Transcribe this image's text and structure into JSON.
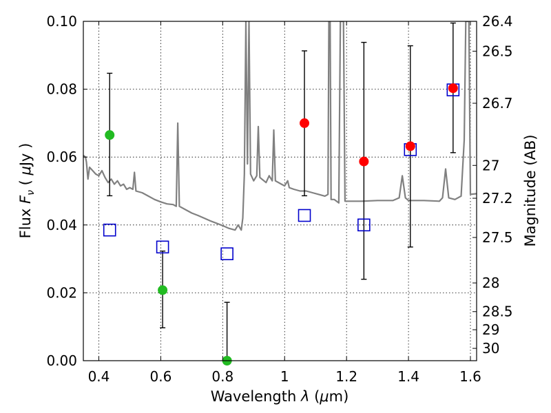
{
  "chart_data": {
    "type": "scatter",
    "xlabel": "Wavelength  λ (μm)",
    "ylabel": "Flux  F_ν  ( μJy )",
    "ylabel_parts": {
      "pre": "Flux  ",
      "f": "F",
      "sub": "ν",
      "mid": "  ( ",
      "mu": "μ",
      "post": "Jy )"
    },
    "xlabel_parts": {
      "pre": "Wavelength  ",
      "lambda": "λ",
      "mid": " (",
      "mu": "μ",
      "post": "m)"
    },
    "y2label": "Magnitude (AB)",
    "xlim": [
      0.35,
      1.62
    ],
    "ylim": [
      0.0,
      0.1
    ],
    "grid": true,
    "x_ticks": [
      0.4,
      0.6,
      0.8,
      1.0,
      1.2,
      1.4,
      1.6
    ],
    "x_tick_labels": [
      "0.4",
      "0.6",
      "0.8",
      "1",
      "1.2",
      "1.4",
      "1.6"
    ],
    "y_ticks": [
      0.0,
      0.02,
      0.04,
      0.06,
      0.08,
      0.1
    ],
    "y_tick_labels": [
      "0.00",
      "0.02",
      "0.04",
      "0.06",
      "0.08",
      "0.10"
    ],
    "mag_ticks": [
      26.4,
      26.5,
      26.7,
      27,
      27.2,
      27.5,
      28,
      28.5,
      29,
      30
    ],
    "mag_tick_labels": [
      "26.4",
      "26.5",
      "26.7",
      "27",
      "27.2",
      "27.5",
      "28",
      "28.5",
      "29",
      "30"
    ],
    "colors": {
      "spectrum": "#808080",
      "model_box": "#0000cc",
      "detection": "#ff0000",
      "low_sn": "#22bb22",
      "errorbar": "#000000"
    },
    "spectrum": [
      [
        0.35,
        0.0605
      ],
      [
        0.357,
        0.06
      ],
      [
        0.36,
        0.0585
      ],
      [
        0.365,
        0.0535
      ],
      [
        0.37,
        0.057
      ],
      [
        0.38,
        0.056
      ],
      [
        0.39,
        0.055
      ],
      [
        0.4,
        0.0545
      ],
      [
        0.41,
        0.056
      ],
      [
        0.42,
        0.054
      ],
      [
        0.43,
        0.0525
      ],
      [
        0.44,
        0.0535
      ],
      [
        0.45,
        0.052
      ],
      [
        0.46,
        0.053
      ],
      [
        0.47,
        0.0515
      ],
      [
        0.48,
        0.052
      ],
      [
        0.49,
        0.0505
      ],
      [
        0.5,
        0.051
      ],
      [
        0.51,
        0.0505
      ],
      [
        0.515,
        0.0555
      ],
      [
        0.52,
        0.05
      ],
      [
        0.54,
        0.0495
      ],
      [
        0.56,
        0.0485
      ],
      [
        0.58,
        0.0475
      ],
      [
        0.6,
        0.0468
      ],
      [
        0.62,
        0.0462
      ],
      [
        0.64,
        0.046
      ],
      [
        0.65,
        0.0455
      ],
      [
        0.655,
        0.07
      ],
      [
        0.66,
        0.0455
      ],
      [
        0.68,
        0.0445
      ],
      [
        0.7,
        0.0435
      ],
      [
        0.72,
        0.0428
      ],
      [
        0.74,
        0.042
      ],
      [
        0.76,
        0.0412
      ],
      [
        0.78,
        0.0405
      ],
      [
        0.8,
        0.0398
      ],
      [
        0.82,
        0.039
      ],
      [
        0.84,
        0.0385
      ],
      [
        0.85,
        0.04
      ],
      [
        0.86,
        0.0385
      ],
      [
        0.865,
        0.042
      ],
      [
        0.87,
        0.055
      ],
      [
        0.875,
        0.1
      ],
      [
        0.88,
        0.058
      ],
      [
        0.885,
        0.1
      ],
      [
        0.89,
        0.055
      ],
      [
        0.9,
        0.053
      ],
      [
        0.91,
        0.0545
      ],
      [
        0.915,
        0.069
      ],
      [
        0.92,
        0.054
      ],
      [
        0.94,
        0.0525
      ],
      [
        0.95,
        0.0545
      ],
      [
        0.96,
        0.053
      ],
      [
        0.965,
        0.068
      ],
      [
        0.97,
        0.053
      ],
      [
        0.99,
        0.052
      ],
      [
        1.0,
        0.0515
      ],
      [
        1.01,
        0.053
      ],
      [
        1.015,
        0.051
      ],
      [
        1.03,
        0.0505
      ],
      [
        1.05,
        0.05
      ],
      [
        1.07,
        0.05
      ],
      [
        1.09,
        0.0495
      ],
      [
        1.11,
        0.049
      ],
      [
        1.13,
        0.0485
      ],
      [
        1.14,
        0.049
      ],
      [
        1.143,
        0.1
      ],
      [
        1.147,
        0.1
      ],
      [
        1.15,
        0.0475
      ],
      [
        1.16,
        0.0475
      ],
      [
        1.175,
        0.0465
      ],
      [
        1.18,
        0.1
      ],
      [
        1.19,
        0.1
      ],
      [
        1.195,
        0.047
      ],
      [
        1.21,
        0.047
      ],
      [
        1.25,
        0.047
      ],
      [
        1.3,
        0.0472
      ],
      [
        1.35,
        0.0472
      ],
      [
        1.37,
        0.048
      ],
      [
        1.38,
        0.0545
      ],
      [
        1.39,
        0.048
      ],
      [
        1.4,
        0.0472
      ],
      [
        1.45,
        0.0472
      ],
      [
        1.5,
        0.047
      ],
      [
        1.51,
        0.048
      ],
      [
        1.52,
        0.0565
      ],
      [
        1.53,
        0.048
      ],
      [
        1.55,
        0.0475
      ],
      [
        1.57,
        0.0485
      ],
      [
        1.58,
        0.065
      ],
      [
        1.585,
        0.1
      ],
      [
        1.595,
        0.1
      ],
      [
        1.6,
        0.049
      ],
      [
        1.62,
        0.0492
      ]
    ],
    "model_boxes": [
      {
        "x": 0.435,
        "y": 0.0385
      },
      {
        "x": 0.606,
        "y": 0.0335
      },
      {
        "x": 0.814,
        "y": 0.0315
      },
      {
        "x": 1.064,
        "y": 0.0428
      },
      {
        "x": 1.256,
        "y": 0.04
      },
      {
        "x": 1.406,
        "y": 0.0622
      },
      {
        "x": 1.544,
        "y": 0.0798
      }
    ],
    "detections": [
      {
        "x": 1.064,
        "y": 0.07,
        "err_low": 0.0486,
        "err_high": 0.0913
      },
      {
        "x": 1.256,
        "y": 0.0587,
        "err_low": 0.024,
        "err_high": 0.0938
      },
      {
        "x": 1.406,
        "y": 0.0632,
        "err_low": 0.0335,
        "err_high": 0.0928
      },
      {
        "x": 1.544,
        "y": 0.0803,
        "err_low": 0.0613,
        "err_high": 0.0995
      }
    ],
    "low_sn": [
      {
        "x": 0.435,
        "y": 0.0665,
        "err_low": 0.0486,
        "err_high": 0.0847
      },
      {
        "x": 0.606,
        "y": 0.0208,
        "err_low": 0.0097,
        "err_high": 0.0323
      },
      {
        "x": 0.814,
        "y": 0.0,
        "err_low": 0.0,
        "err_high": 0.0172
      }
    ]
  }
}
